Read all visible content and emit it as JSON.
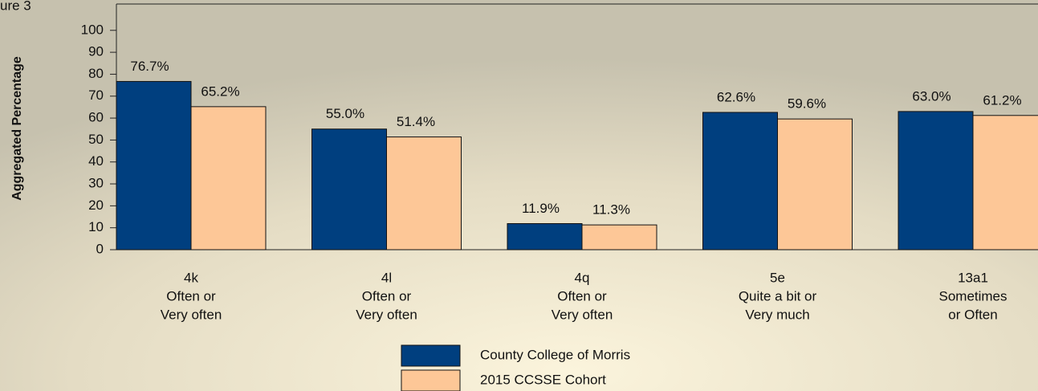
{
  "chart_data": {
    "type": "bar",
    "figure_label": "ure 3",
    "y_label": "Aggregated Percentage",
    "categories": [
      [
        "4k",
        "Often or",
        "Very often"
      ],
      [
        "4l",
        "Often or",
        "Very often"
      ],
      [
        "4q",
        "Often or",
        "Very often"
      ],
      [
        "5e",
        "Quite a bit or",
        "Very much"
      ],
      [
        "13a1",
        "Sometimes",
        "or Often"
      ]
    ],
    "series": [
      {
        "name": "County College of Morris",
        "color": "#003f7f",
        "values": [
          76.7,
          55.0,
          11.9,
          62.6,
          63.0
        ],
        "value_labels": [
          "76.7%",
          "55.0%",
          "11.9%",
          "62.6%",
          "63.0%"
        ]
      },
      {
        "name": "2015 CCSSE Cohort",
        "color": "#fdc797",
        "values": [
          65.2,
          51.4,
          11.3,
          59.6,
          61.2
        ],
        "value_labels": [
          "65.2%",
          "51.4%",
          "11.3%",
          "59.6%",
          "61.2%"
        ]
      }
    ],
    "ylim": [
      0,
      112
    ],
    "yticks": [
      0,
      10,
      20,
      30,
      40,
      50,
      60,
      70,
      80,
      90,
      100
    ]
  }
}
